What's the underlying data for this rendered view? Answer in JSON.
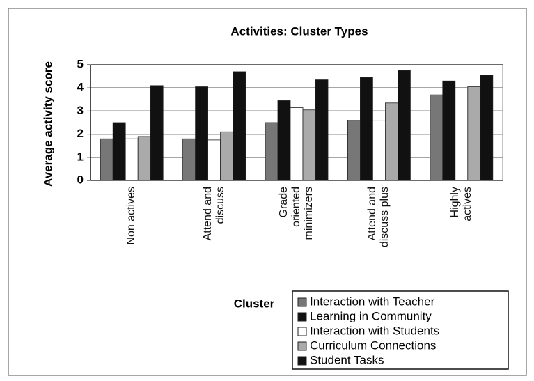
{
  "chart_data": {
    "type": "bar",
    "title": "Activities: Cluster Types",
    "y_label": "Average activity score",
    "x_label": "Cluster",
    "categories": [
      "Non actives",
      "Attend and discuss",
      "Grade oriented minimizers",
      "Attend and discuss plus",
      "Highly actives"
    ],
    "series": [
      {
        "name": "Interaction with Teacher",
        "color": "#777777",
        "values": [
          1.8,
          1.8,
          2.5,
          2.6,
          3.7
        ]
      },
      {
        "name": "Learning in Community",
        "color": "#111111",
        "values": [
          2.5,
          4.05,
          3.45,
          4.45,
          4.3
        ]
      },
      {
        "name": "Interaction with Students",
        "color": "#ffffff",
        "values": [
          1.8,
          1.75,
          3.15,
          2.6,
          4.0
        ]
      },
      {
        "name": "Curriculum Connections",
        "color": "#aaaaaa",
        "values": [
          1.9,
          2.1,
          3.05,
          3.35,
          4.05
        ]
      },
      {
        "name": "Student Tasks",
        "color": "#111111",
        "values": [
          4.1,
          4.7,
          4.35,
          4.75,
          4.55
        ]
      }
    ],
    "ylim": [
      0,
      5
    ],
    "yticks": [
      0,
      1,
      2,
      3,
      4,
      5
    ],
    "grid": true
  }
}
